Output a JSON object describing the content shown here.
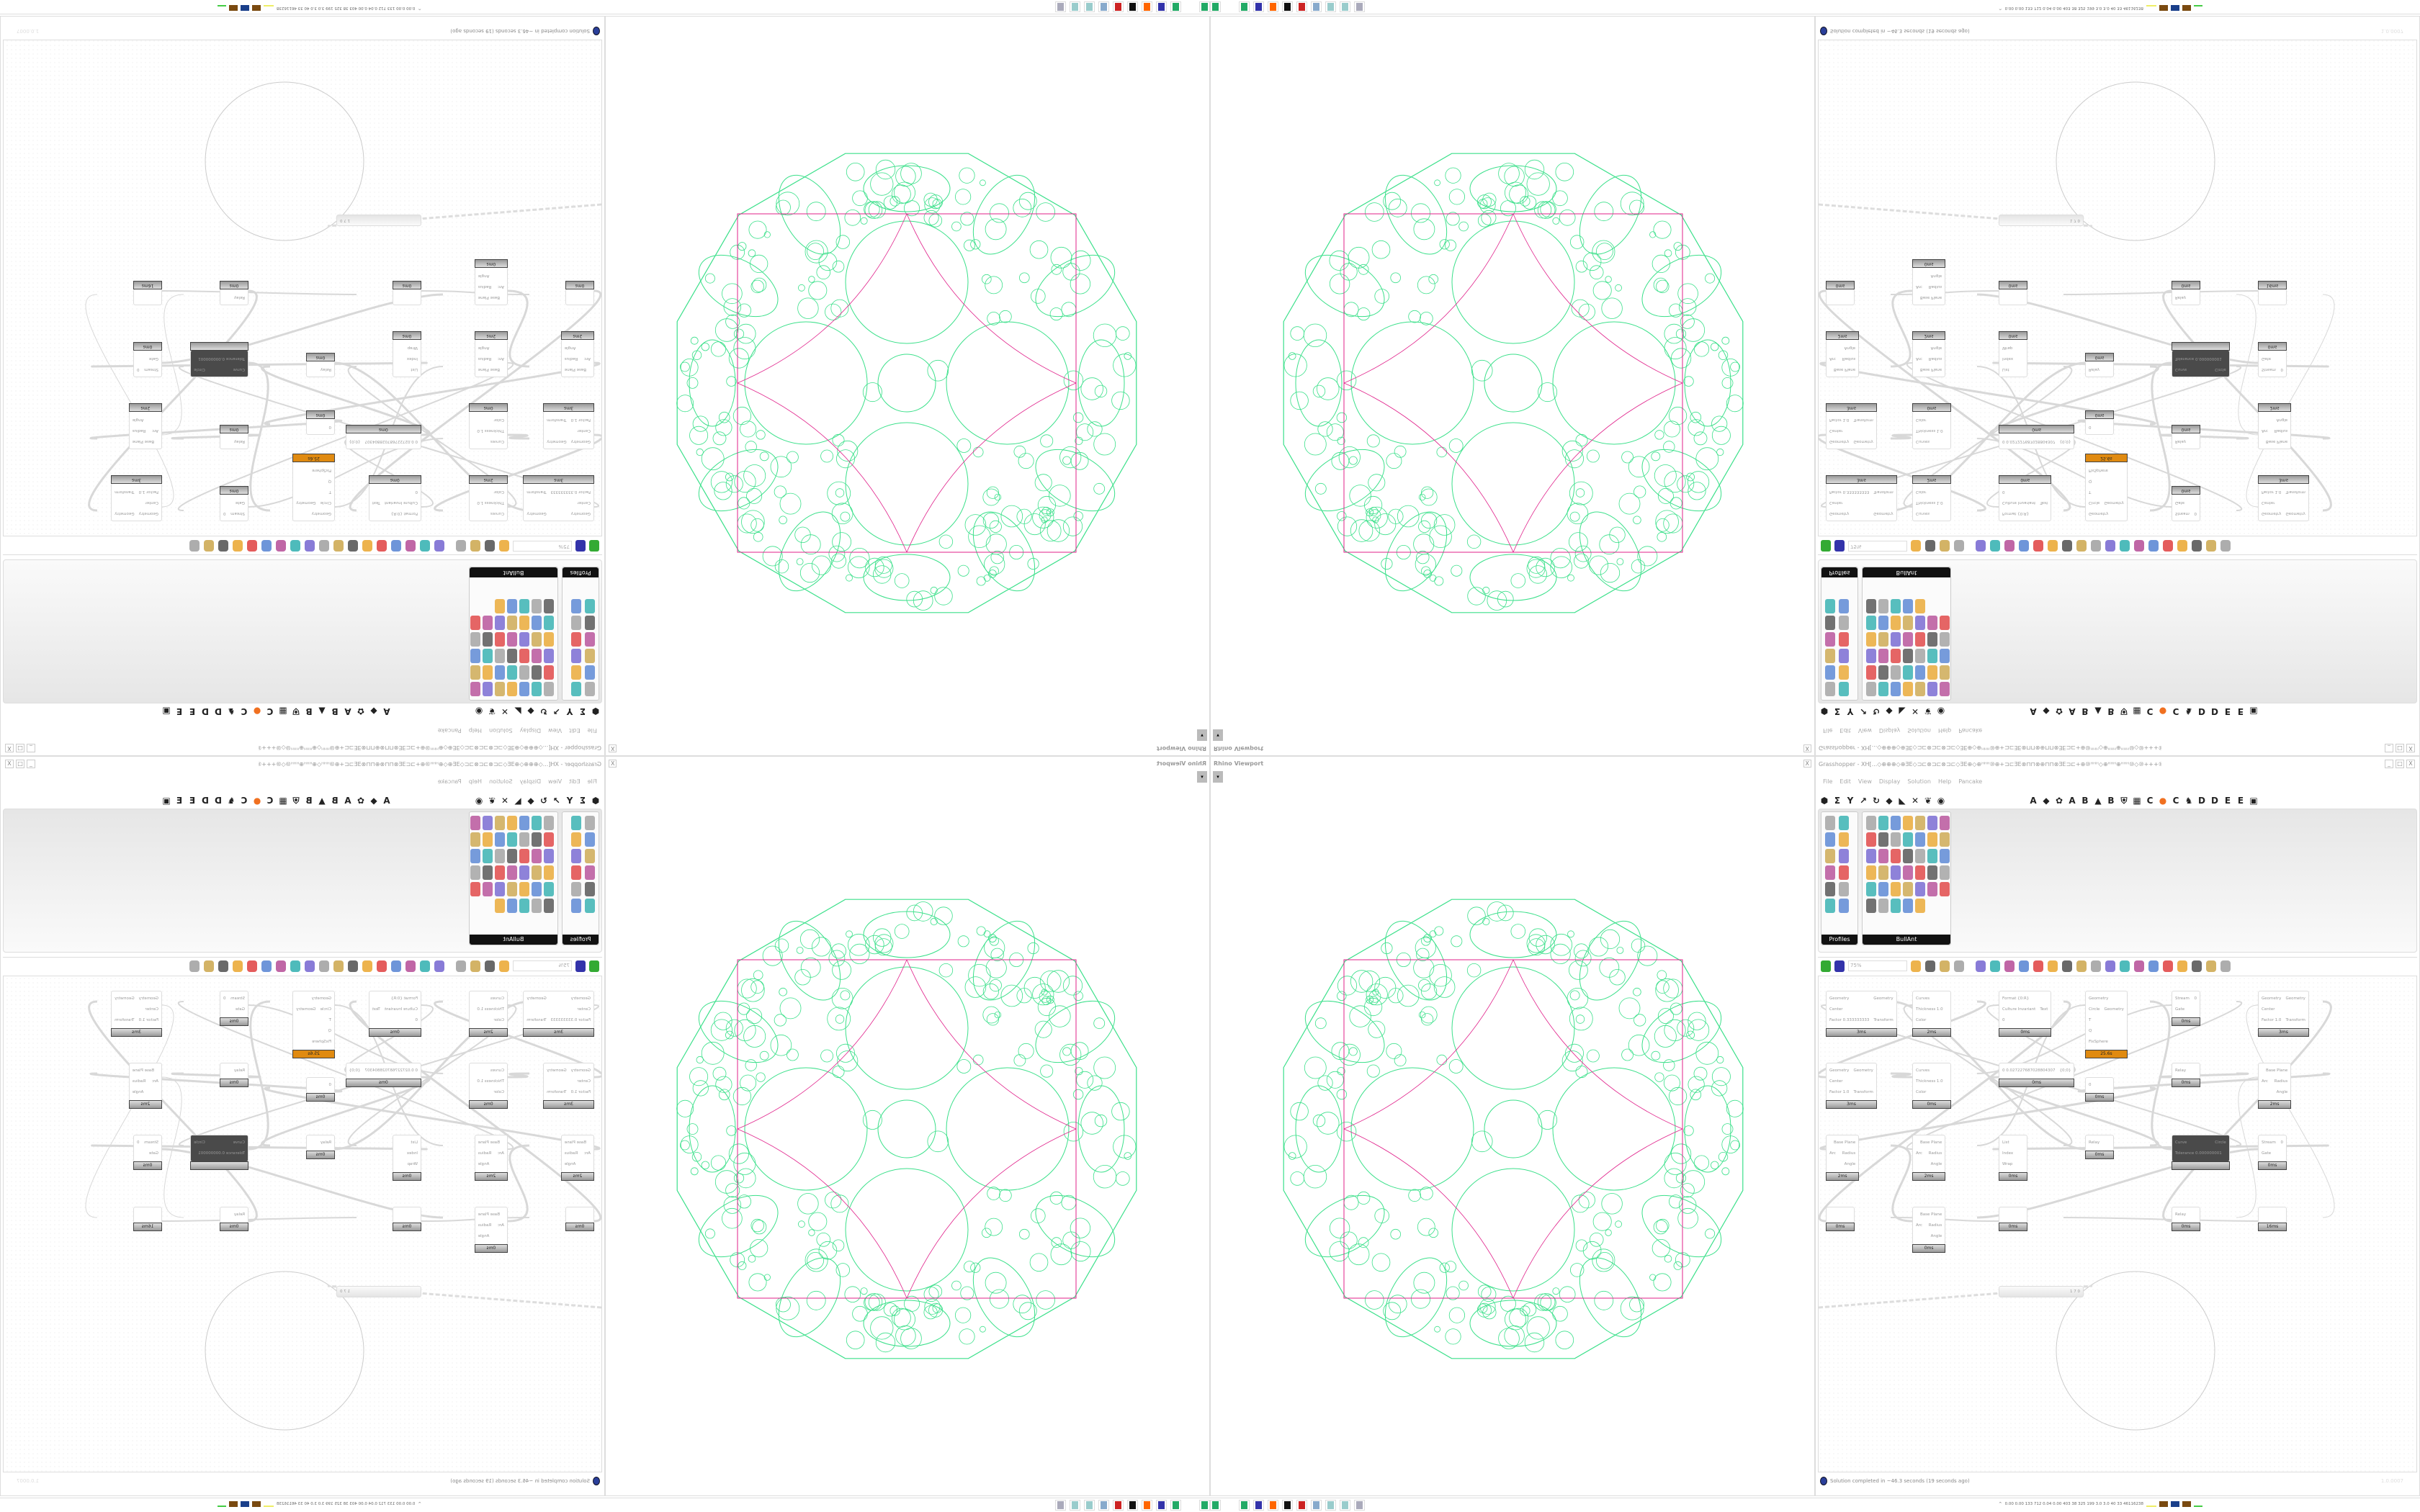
{
  "grasshopper": {
    "title": "Grasshopper - XH[...◇⊕⊕⊕◇⊕ƎE◇⊐⊏⊗⊐⊏⊗⊐⊏◇ƎE⊕◇⊕ᴴᴴᴴ⑩⊕+⊐⊏ƎE⊗⊓⊓⊗⊕⊓⊓⊗ƎE⊐⊏+⊕⑩ᴴᴴᴴ◇⊕ᴴᴴᴴ⊕ᴴᴴᴴ⑩◇⑩+++⑩◇⑩ᴴᴴᴴ⊕ᴴᴴᴴ⊕◇...",
    "window_buttons": [
      "_",
      "□",
      "X"
    ],
    "menu": [
      "File",
      "Edit",
      "View",
      "Display",
      "Solution",
      "Help",
      "Pancake"
    ],
    "tabs": [
      "⬢",
      "Σ",
      "Y",
      "↗",
      "↻",
      "◆",
      "◣",
      "✕",
      "❦",
      "◉",
      "A",
      "◆",
      "✿",
      "A",
      "B",
      "▲",
      "B",
      "⛨",
      "▦",
      "C",
      "●",
      "C",
      "♞",
      "D",
      "D",
      "E",
      "E",
      "▣"
    ],
    "panels": [
      {
        "label": "Profiles"
      },
      {
        "label": "BullAnt"
      }
    ],
    "zoom_level": "75%",
    "status": "Solution completed in ~46.3 seconds (19 seconds ago)",
    "version": "1.0.0007",
    "nodes": [
      {
        "rows": [
          [
            "Curves",
            ""
          ],
          [
            "Thickness 1.0",
            ""
          ],
          [
            "Color",
            ""
          ]
        ],
        "time": "2ms"
      },
      {
        "rows": [
          [
            "Curves",
            ""
          ],
          [
            "Thickness 1.0",
            ""
          ],
          [
            "Color",
            ""
          ]
        ],
        "time": "0ms"
      },
      {
        "rows": [
          [
            "Geometry",
            "Geometry"
          ],
          [
            "Center",
            ""
          ],
          [
            "Factor 0.333333333",
            "Transform"
          ]
        ],
        "time": "3ms"
      },
      {
        "rows": [
          [
            "Geometry",
            "Geometry"
          ],
          [
            "Center",
            ""
          ],
          [
            "Factor 1.0",
            "Transform"
          ]
        ],
        "time": "3ms"
      },
      {
        "rows": [
          [
            "",
            "Base Plane"
          ],
          [
            "Arc",
            "Radius"
          ],
          [
            "",
            "Angle"
          ]
        ],
        "time": "2ms"
      },
      {
        "rows": [
          [
            "",
            "Base Plane"
          ],
          [
            "Arc",
            "Radius"
          ],
          [
            "",
            "Angle"
          ]
        ],
        "time": "0ms"
      },
      {
        "rows": [
          [
            "Format {0:R}",
            ""
          ],
          [
            "Culture Invariant",
            "Text"
          ],
          [
            "0",
            ""
          ]
        ],
        "time": "0ms"
      },
      {
        "rows": [
          [
            "0 0.027227687028804307",
            "{0;0}"
          ]
        ],
        "time": "0ms"
      },
      {
        "rows": [
          [
            "Geometry",
            ""
          ],
          [
            "Circle",
            "Geometry"
          ],
          [
            "T",
            ""
          ],
          [
            "Q",
            ""
          ],
          [
            "FixSphere",
            ""
          ]
        ],
        "time": "25.6s"
      },
      {
        "rows": [
          [
            "0",
            ""
          ]
        ],
        "time": "0ms"
      },
      {
        "rows": [
          [
            "Stream",
            "0"
          ],
          [
            "Gate",
            ""
          ]
        ],
        "time": "0ms"
      },
      {
        "rows": [
          [
            "Relay",
            ""
          ]
        ],
        "time": "0ms"
      },
      {
        "rows": [
          [
            "Geometry",
            "Geometry"
          ],
          [
            "Center",
            ""
          ],
          [
            "Factor 1.0",
            "Transform"
          ]
        ],
        "time": "3ms"
      },
      {
        "rows": [
          [
            "Curve",
            "Circle"
          ],
          [
            "Tolerance 0.000000001",
            ""
          ]
        ],
        "time": ""
      },
      {
        "rows": [
          [
            "",
            "Base Plane"
          ],
          [
            "Arc",
            "Radius"
          ],
          [
            "",
            "Angle"
          ]
        ],
        "time": "2ms"
      },
      {
        "rows": [
          [
            "Stream",
            "0"
          ],
          [
            "Gate",
            ""
          ]
        ],
        "time": "0ms"
      },
      {
        "rows": [
          [
            "List",
            ""
          ],
          [
            "Index",
            ""
          ],
          [
            "Wrap",
            ""
          ]
        ],
        "time": "0ms"
      },
      {
        "rows": [
          [
            "Relay",
            ""
          ]
        ],
        "time": "0ms"
      },
      {
        "rows": [
          [
            "Relay",
            ""
          ]
        ],
        "time": "0ms"
      },
      {
        "rows": [
          [
            "",
            ""
          ]
        ],
        "time": "0ms"
      },
      {
        "rows": [
          [
            "",
            "Base Plane"
          ],
          [
            "Arc",
            "Radius"
          ],
          [
            "",
            "Angle"
          ]
        ],
        "time": "2ms"
      },
      {
        "rows": [
          [
            "",
            ""
          ]
        ],
        "time": "16ms"
      },
      {
        "rows": [
          [
            "",
            ""
          ]
        ],
        "time": "0ms"
      }
    ],
    "slider_value": "1 7 0"
  },
  "rhino": {
    "title": "Rhino Viewport",
    "close": "X",
    "colors": {
      "circles": "#3be08a",
      "frame": "#e0208a"
    }
  },
  "taskbar": {
    "stats": "0.00 0.00 133 712 0.04 0.00 403 38 325 199 3.0 3.0 40 33 46116238",
    "caret": "^"
  }
}
